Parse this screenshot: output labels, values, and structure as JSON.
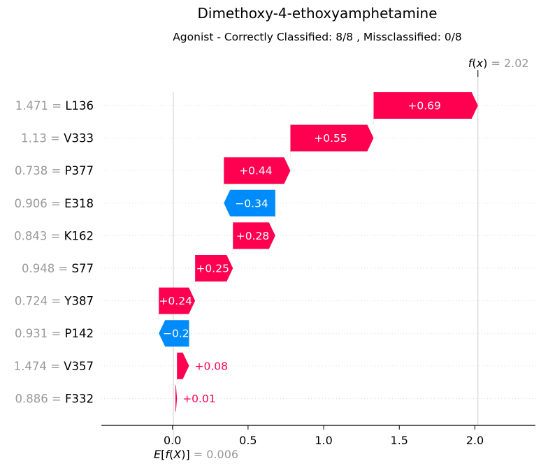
{
  "chart_data": {
    "type": "waterfall",
    "title": "Dimethoxy-4-ethoxyamphetamine",
    "subtitle": "Agonist - Correctly Classified: 8/8 , Missclassified: 0/8",
    "base_value": 0.006,
    "base_value_label": "= 0.006",
    "fx_value": 2.02,
    "fx_value_label": "= 2.02",
    "xlim": [
      -0.47,
      2.4
    ],
    "xticks": [
      0.0,
      0.5,
      1.0,
      1.5,
      2.0
    ],
    "xtick_labels": [
      "0.0",
      "0.5",
      "1.0",
      "1.5",
      "2.0"
    ],
    "grid": "dotted horizontal row guides",
    "features": [
      {
        "value_label": "1.471 =",
        "name": "L136",
        "contribution": 0.69,
        "contribution_label": "+0.69"
      },
      {
        "value_label": "1.13 =",
        "name": "V333",
        "contribution": 0.55,
        "contribution_label": "+0.55"
      },
      {
        "value_label": "0.738 =",
        "name": "P377",
        "contribution": 0.44,
        "contribution_label": "+0.44"
      },
      {
        "value_label": "0.906 =",
        "name": "E318",
        "contribution": -0.34,
        "contribution_label": "−0.34"
      },
      {
        "value_label": "0.843 =",
        "name": "K162",
        "contribution": 0.28,
        "contribution_label": "+0.28"
      },
      {
        "value_label": "0.948 =",
        "name": "S77",
        "contribution": 0.25,
        "contribution_label": "+0.25"
      },
      {
        "value_label": "0.724 =",
        "name": "Y387",
        "contribution": 0.24,
        "contribution_label": "+0.24"
      },
      {
        "value_label": "0.931 =",
        "name": "P142",
        "contribution": -0.2,
        "contribution_label": "−0.2"
      },
      {
        "value_label": "1.474 =",
        "name": "V357",
        "contribution": 0.08,
        "contribution_label": "+0.08"
      },
      {
        "value_label": "0.886 =",
        "name": "F332",
        "contribution": 0.01,
        "contribution_label": "+0.01"
      }
    ],
    "colors": {
      "positive": "#ff0051",
      "negative": "#008bfb",
      "muted_text": "#999999",
      "guide": "#cccccc"
    }
  }
}
